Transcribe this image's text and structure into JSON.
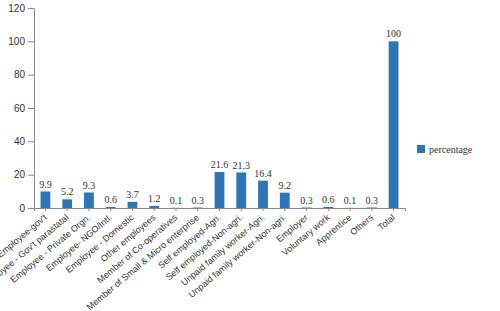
{
  "chart_data": {
    "type": "bar",
    "categories": [
      "Employee-gov't",
      "Employee - Gov't parastatal",
      "Employee - Private Orgn.",
      "Employee- NGO/Intl.",
      "Employee - Domestic",
      "Other employees",
      "Member of Co-operatives",
      "Member of Small & Micro enterprise",
      "Self employed-Agri.",
      "Self employed-Non-agri.",
      "Unpaid family worker-Agri.",
      "Unpaid family worker-Non-agri.",
      "Employer",
      "Voluntary work",
      "Apprentice",
      "Others",
      "Total"
    ],
    "series": [
      {
        "name": "percentage",
        "color": "#2e75b6",
        "values": [
          9.9,
          5.2,
          9.3,
          0.6,
          3.7,
          1.2,
          0.1,
          0.3,
          21.6,
          21.3,
          16.4,
          9.2,
          0.3,
          0.6,
          0.1,
          0.3,
          100
        ]
      }
    ],
    "ylim": [
      0,
      120
    ],
    "yticks": [
      0,
      20,
      40,
      60,
      80,
      100,
      120
    ],
    "grid": false,
    "legend": "right",
    "data_labels": true
  }
}
